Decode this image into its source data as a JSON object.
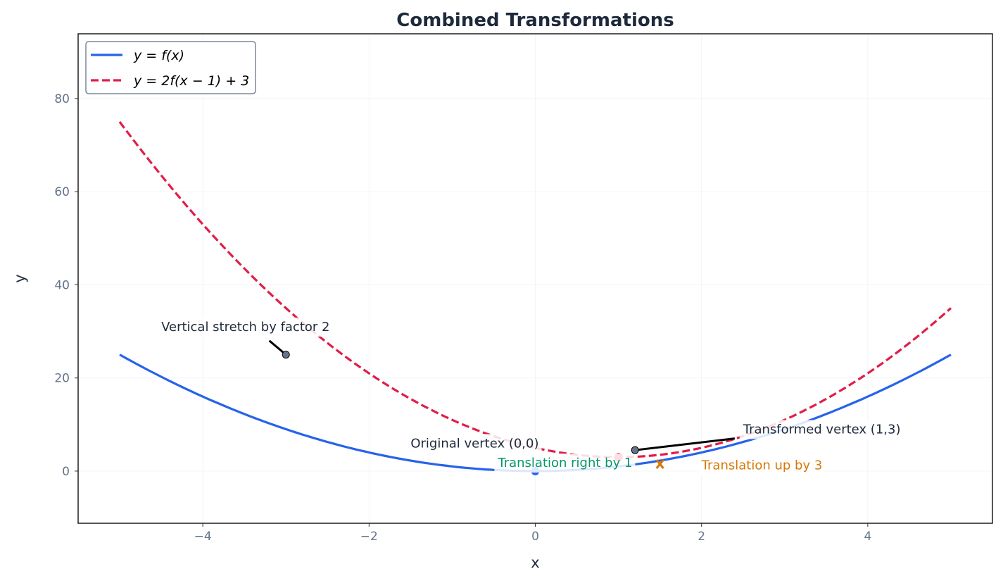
{
  "chart_data": {
    "type": "line",
    "title": "Combined Transformations",
    "xlabel": "x",
    "ylabel": "y",
    "xlim": [
      -5.5,
      5.5
    ],
    "ylim": [
      -11.2,
      93.9
    ],
    "xticks": [
      -4,
      -2,
      0,
      2,
      4
    ],
    "xtick_labels": [
      "−4",
      "−2",
      "0",
      "2",
      "4"
    ],
    "yticks": [
      0,
      20,
      40,
      60,
      80
    ],
    "ytick_labels": [
      "0",
      "20",
      "40",
      "60",
      "80"
    ],
    "grid": true,
    "legend": {
      "placement": "top-left",
      "entries": [
        "y = f(x)",
        "y = 2f(x − 1) + 3"
      ]
    },
    "series": [
      {
        "name": "y = f(x)",
        "expr": "x^2",
        "x_range": [
          -5,
          5
        ],
        "color": "#2563eb",
        "style": "solid"
      },
      {
        "name": "y = 2f(x − 1) + 3",
        "expr": "2(x-1)^2+3",
        "x_range": [
          -5,
          5
        ],
        "color": "#e11d48",
        "style": "dashed"
      }
    ],
    "points": [
      {
        "x": 0,
        "y": 0,
        "color": "#2563eb",
        "marker": "circle"
      },
      {
        "x": 1,
        "y": 3,
        "color": "#e11d48",
        "marker": "circle"
      },
      {
        "x": 1.5,
        "y": 1.5,
        "color": "#d97706",
        "marker": "x"
      }
    ],
    "annotations": [
      {
        "text": "Vertical stretch by factor 2",
        "x": -4.5,
        "y": 31,
        "arrow_to": [
          -3,
          25
        ],
        "color": "#1e293b"
      },
      {
        "text": "Original vertex (0,0)",
        "x": -1.5,
        "y": 6,
        "color": "#1e293b"
      },
      {
        "text": "Translation right by 1",
        "x": -0.45,
        "y": 1.8,
        "color": "#059669"
      },
      {
        "text": "Transformed vertex (1,3)",
        "x": 2.5,
        "y": 9,
        "arrow_to": [
          1.2,
          4.5
        ],
        "color": "#1e293b"
      },
      {
        "text": "Translation up by 3",
        "x": 2,
        "y": 1.3,
        "color": "#d97706"
      }
    ]
  }
}
